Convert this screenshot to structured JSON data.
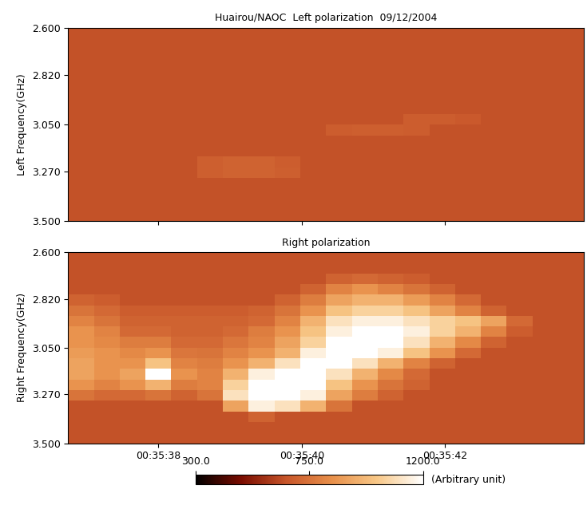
{
  "chart_data": [
    {
      "type": "heatmap",
      "title": "Huairou/NAOC  Left polarization  09/12/2004",
      "y_label": "Left Frequency(GHz)",
      "xlim": [
        36.74,
        43.94
      ],
      "xticks": [
        {
          "value": 38,
          "label": "00:35:38"
        },
        {
          "value": 40,
          "label": "00:35:40"
        },
        {
          "value": 42,
          "label": "00:35:42"
        }
      ],
      "ylim": [
        3.5,
        2.6
      ],
      "yticks": [
        {
          "value": 2.6,
          "label": "2.600"
        },
        {
          "value": 2.82,
          "label": "2.820"
        },
        {
          "value": 3.05,
          "label": "3.050"
        },
        {
          "value": 3.27,
          "label": "3.270"
        },
        {
          "value": 3.5,
          "label": "3.500"
        }
      ],
      "tick_labels": "y",
      "x_edges": [
        36.74,
        37.1,
        37.46,
        37.82,
        38.18,
        38.54,
        38.9,
        39.26,
        39.62,
        39.98,
        40.34,
        40.7,
        41.06,
        41.42,
        41.78,
        42.14,
        42.5,
        42.86,
        43.22,
        43.58,
        43.94
      ],
      "y_edges": [
        2.6,
        2.65,
        2.7,
        2.75,
        2.8,
        2.85,
        2.9,
        2.95,
        3.0,
        3.05,
        3.1,
        3.15,
        3.2,
        3.25,
        3.3,
        3.35,
        3.4,
        3.45,
        3.5
      ],
      "cells": [
        [
          650,
          650,
          650,
          650,
          650,
          650,
          650,
          650,
          650,
          650,
          650,
          650,
          650,
          650,
          650,
          650,
          650,
          650,
          650,
          650
        ],
        [
          650,
          650,
          650,
          650,
          650,
          650,
          650,
          650,
          650,
          650,
          650,
          650,
          650,
          650,
          650,
          650,
          650,
          650,
          650,
          650
        ],
        [
          650,
          650,
          650,
          650,
          650,
          650,
          650,
          650,
          650,
          650,
          650,
          650,
          650,
          650,
          650,
          650,
          650,
          650,
          650,
          650
        ],
        [
          650,
          650,
          650,
          650,
          650,
          650,
          650,
          650,
          650,
          650,
          650,
          650,
          650,
          650,
          650,
          650,
          650,
          650,
          650,
          650
        ],
        [
          650,
          650,
          650,
          650,
          650,
          650,
          650,
          650,
          650,
          650,
          650,
          650,
          650,
          650,
          650,
          650,
          650,
          650,
          650,
          650
        ],
        [
          650,
          650,
          650,
          650,
          650,
          650,
          650,
          650,
          650,
          650,
          650,
          650,
          650,
          650,
          650,
          650,
          650,
          650,
          650,
          650
        ],
        [
          650,
          650,
          650,
          650,
          650,
          650,
          650,
          650,
          650,
          650,
          650,
          650,
          650,
          650,
          650,
          650,
          650,
          650,
          650,
          650
        ],
        [
          650,
          650,
          650,
          650,
          650,
          650,
          650,
          650,
          650,
          650,
          650,
          650,
          650,
          650,
          650,
          650,
          650,
          650,
          650,
          650
        ],
        [
          650,
          650,
          650,
          650,
          650,
          650,
          650,
          650,
          650,
          650,
          650,
          650,
          650,
          680,
          680,
          670,
          650,
          650,
          650,
          650
        ],
        [
          650,
          650,
          650,
          650,
          650,
          650,
          650,
          650,
          650,
          650,
          680,
          690,
          690,
          680,
          650,
          650,
          650,
          650,
          650,
          650
        ],
        [
          650,
          650,
          650,
          650,
          650,
          650,
          650,
          650,
          650,
          650,
          650,
          650,
          650,
          650,
          650,
          650,
          650,
          650,
          650,
          650
        ],
        [
          650,
          650,
          650,
          650,
          650,
          650,
          650,
          650,
          650,
          650,
          650,
          650,
          650,
          650,
          650,
          650,
          650,
          650,
          650,
          650
        ],
        [
          650,
          650,
          650,
          650,
          650,
          690,
          700,
          700,
          680,
          650,
          650,
          650,
          650,
          650,
          650,
          650,
          650,
          650,
          650,
          650
        ],
        [
          650,
          650,
          650,
          650,
          650,
          690,
          700,
          700,
          690,
          650,
          650,
          650,
          650,
          650,
          650,
          650,
          650,
          650,
          650,
          650
        ],
        [
          650,
          650,
          650,
          650,
          650,
          650,
          650,
          650,
          650,
          650,
          650,
          650,
          650,
          650,
          650,
          650,
          650,
          650,
          650,
          650
        ],
        [
          650,
          650,
          650,
          650,
          650,
          650,
          650,
          650,
          650,
          650,
          650,
          650,
          650,
          650,
          650,
          650,
          650,
          650,
          650,
          650
        ],
        [
          650,
          650,
          650,
          650,
          650,
          650,
          650,
          650,
          650,
          650,
          650,
          650,
          650,
          650,
          650,
          650,
          650,
          650,
          650,
          650
        ],
        [
          650,
          650,
          650,
          650,
          650,
          650,
          650,
          650,
          650,
          650,
          650,
          650,
          650,
          650,
          650,
          650,
          650,
          650,
          650,
          650
        ]
      ]
    },
    {
      "type": "heatmap",
      "title": "Right polarization",
      "y_label": "Right Frequency(GHz)",
      "xlim": [
        36.74,
        43.94
      ],
      "xticks": [
        {
          "value": 38,
          "label": "00:35:38"
        },
        {
          "value": 40,
          "label": "00:35:40"
        },
        {
          "value": 42,
          "label": "00:35:42"
        }
      ],
      "ylim": [
        3.5,
        2.6
      ],
      "yticks": [
        {
          "value": 2.6,
          "label": "2.600"
        },
        {
          "value": 2.82,
          "label": "2.820"
        },
        {
          "value": 3.05,
          "label": "3.050"
        },
        {
          "value": 3.27,
          "label": "3.270"
        },
        {
          "value": 3.5,
          "label": "3.500"
        }
      ],
      "x_edges": [
        36.74,
        37.1,
        37.46,
        37.82,
        38.18,
        38.54,
        38.9,
        39.26,
        39.62,
        39.98,
        40.34,
        40.7,
        41.06,
        41.42,
        41.78,
        42.14,
        42.5,
        42.86,
        43.22,
        43.58,
        43.94
      ],
      "y_edges": [
        2.6,
        2.65,
        2.7,
        2.75,
        2.8,
        2.85,
        2.9,
        2.95,
        3.0,
        3.05,
        3.1,
        3.15,
        3.2,
        3.25,
        3.3,
        3.35,
        3.4,
        3.45,
        3.5
      ],
      "cells": [
        [
          650,
          650,
          650,
          650,
          650,
          650,
          650,
          650,
          650,
          650,
          650,
          650,
          650,
          650,
          650,
          650,
          650,
          650,
          650,
          650
        ],
        [
          650,
          650,
          650,
          650,
          650,
          650,
          650,
          650,
          650,
          650,
          650,
          650,
          650,
          650,
          650,
          650,
          650,
          650,
          650,
          650
        ],
        [
          650,
          650,
          650,
          650,
          650,
          650,
          650,
          650,
          650,
          650,
          700,
          720,
          700,
          680,
          650,
          650,
          650,
          650,
          650,
          650
        ],
        [
          650,
          650,
          650,
          650,
          650,
          650,
          650,
          650,
          650,
          700,
          800,
          850,
          800,
          750,
          700,
          650,
          650,
          650,
          650,
          650
        ],
        [
          700,
          680,
          650,
          650,
          650,
          650,
          650,
          650,
          700,
          780,
          900,
          950,
          950,
          880,
          800,
          720,
          650,
          650,
          650,
          650
        ],
        [
          750,
          720,
          680,
          680,
          680,
          680,
          680,
          700,
          750,
          850,
          1000,
          1050,
          1050,
          1000,
          900,
          800,
          700,
          650,
          650,
          650
        ],
        [
          800,
          750,
          700,
          700,
          700,
          700,
          700,
          720,
          800,
          950,
          1100,
          1150,
          1150,
          1100,
          1050,
          1000,
          900,
          720,
          650,
          650
        ],
        [
          850,
          800,
          720,
          720,
          700,
          700,
          720,
          780,
          850,
          1000,
          1150,
          1200,
          1200,
          1150,
          1050,
          950,
          800,
          680,
          650,
          650
        ],
        [
          850,
          820,
          780,
          780,
          720,
          720,
          760,
          800,
          900,
          1050,
          1200,
          1200,
          1200,
          1100,
          950,
          820,
          700,
          650,
          650,
          650
        ],
        [
          880,
          850,
          820,
          850,
          760,
          750,
          800,
          850,
          950,
          1150,
          1200,
          1200,
          1150,
          1000,
          850,
          720,
          650,
          650,
          650,
          650
        ],
        [
          900,
          850,
          850,
          1000,
          800,
          780,
          850,
          950,
          1100,
          1200,
          1200,
          1100,
          950,
          800,
          700,
          650,
          650,
          650,
          650,
          650
        ],
        [
          900,
          850,
          900,
          1200,
          850,
          800,
          950,
          1150,
          1200,
          1200,
          1100,
          950,
          820,
          720,
          650,
          650,
          650,
          650,
          650,
          650
        ],
        [
          850,
          800,
          850,
          950,
          780,
          800,
          1050,
          1200,
          1200,
          1200,
          1000,
          850,
          750,
          700,
          650,
          650,
          650,
          650,
          650,
          650
        ],
        [
          750,
          720,
          720,
          750,
          700,
          750,
          1100,
          1200,
          1200,
          1150,
          900,
          780,
          700,
          650,
          650,
          650,
          650,
          650,
          650,
          650
        ],
        [
          650,
          650,
          650,
          650,
          650,
          650,
          900,
          1150,
          1100,
          950,
          750,
          650,
          650,
          650,
          650,
          650,
          650,
          650,
          650,
          650
        ],
        [
          650,
          650,
          650,
          650,
          650,
          650,
          650,
          700,
          650,
          650,
          650,
          650,
          650,
          650,
          650,
          650,
          650,
          650,
          650,
          650
        ],
        [
          650,
          650,
          650,
          650,
          650,
          650,
          650,
          650,
          650,
          650,
          650,
          650,
          650,
          650,
          650,
          650,
          650,
          650,
          650,
          650
        ],
        [
          650,
          650,
          650,
          650,
          650,
          650,
          650,
          650,
          650,
          650,
          650,
          650,
          650,
          650,
          650,
          650,
          650,
          650,
          650,
          650
        ]
      ],
      "colorbar": {
        "range": [
          300,
          1200
        ],
        "ticks": [
          {
            "value": 300,
            "label": "300.0"
          },
          {
            "value": 750,
            "label": "750.0"
          },
          {
            "value": 1200,
            "label": "1200.0"
          }
        ],
        "label": "(Arbitrary unit)"
      }
    }
  ]
}
